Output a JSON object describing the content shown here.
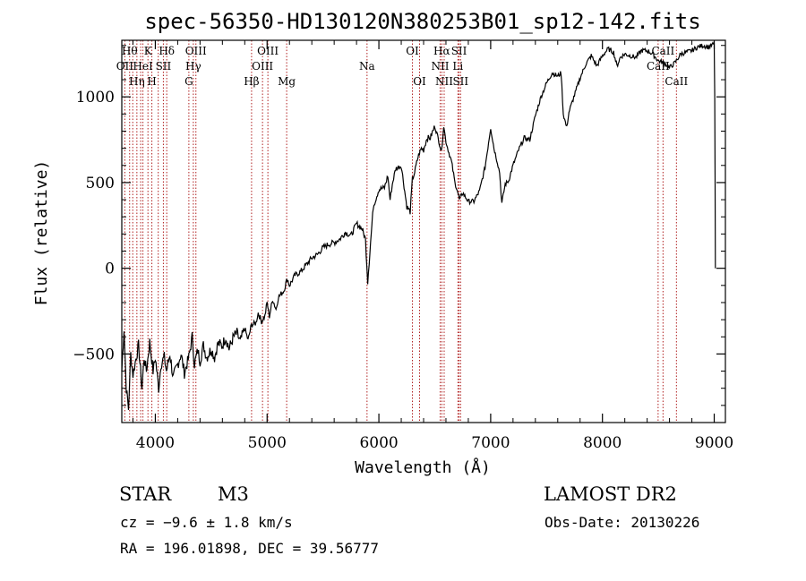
{
  "chart_data": {
    "type": "line",
    "title": "spec-56350-HD130120N380253B01_sp12-142.fits",
    "xlabel": "Wavelength (Å)",
    "ylabel": "Flux (relative)",
    "xlim": [
      3700,
      9100
    ],
    "ylim": [
      -900,
      1330
    ],
    "xticks": [
      4000,
      5000,
      6000,
      7000,
      8000,
      9000
    ],
    "yticks": [
      -500,
      0,
      500,
      1000
    ],
    "grid": false,
    "series": [
      {
        "name": "flux",
        "x": [
          3700,
          3720,
          3740,
          3760,
          3780,
          3800,
          3820,
          3850,
          3880,
          3900,
          3920,
          3950,
          3980,
          4000,
          4030,
          4050,
          4080,
          4100,
          4130,
          4160,
          4200,
          4230,
          4260,
          4300,
          4330,
          4350,
          4380,
          4400,
          4430,
          4460,
          4500,
          4530,
          4560,
          4600,
          4630,
          4660,
          4700,
          4730,
          4760,
          4800,
          4830,
          4860,
          4900,
          4920,
          4950,
          4980,
          5000,
          5020,
          5050,
          5080,
          5100,
          5150,
          5180,
          5200,
          5250,
          5300,
          5350,
          5400,
          5450,
          5500,
          5550,
          5600,
          5650,
          5700,
          5750,
          5800,
          5850,
          5880,
          5900,
          5920,
          5950,
          6000,
          6050,
          6080,
          6100,
          6120,
          6150,
          6200,
          6250,
          6280,
          6300,
          6320,
          6350,
          6380,
          6400,
          6430,
          6460,
          6500,
          6530,
          6560,
          6580,
          6600,
          6620,
          6650,
          6680,
          6700,
          6720,
          6750,
          6800,
          6850,
          6900,
          6950,
          7000,
          7030,
          7060,
          7080,
          7100,
          7130,
          7160,
          7200,
          7250,
          7300,
          7350,
          7400,
          7450,
          7500,
          7550,
          7600,
          7630,
          7650,
          7680,
          7700,
          7750,
          7800,
          7850,
          7900,
          7950,
          8000,
          8050,
          8100,
          8130,
          8160,
          8200,
          8250,
          8300,
          8350,
          8400,
          8450,
          8500,
          8550,
          8600,
          8650,
          8700,
          8750,
          8800,
          8850,
          8900,
          8950,
          9000,
          9005,
          9010
        ],
        "values": [
          -600,
          -350,
          -700,
          -820,
          -500,
          -620,
          -550,
          -450,
          -700,
          -520,
          -600,
          -430,
          -600,
          -520,
          -700,
          -560,
          -520,
          -600,
          -500,
          -640,
          -560,
          -500,
          -610,
          -520,
          -400,
          -560,
          -480,
          -540,
          -450,
          -520,
          -470,
          -520,
          -440,
          -450,
          -400,
          -470,
          -400,
          -380,
          -430,
          -350,
          -420,
          -330,
          -320,
          -260,
          -310,
          -280,
          -200,
          -280,
          -180,
          -240,
          -170,
          -130,
          -60,
          -100,
          -40,
          -20,
          20,
          60,
          80,
          120,
          140,
          150,
          170,
          210,
          190,
          260,
          230,
          170,
          -80,
          100,
          360,
          460,
          470,
          540,
          400,
          490,
          580,
          600,
          360,
          330,
          520,
          560,
          650,
          700,
          690,
          760,
          760,
          830,
          760,
          680,
          830,
          740,
          690,
          620,
          500,
          460,
          400,
          440,
          390,
          390,
          450,
          590,
          820,
          700,
          620,
          560,
          380,
          490,
          510,
          600,
          690,
          760,
          750,
          890,
          1000,
          1080,
          1140,
          1120,
          1140,
          900,
          820,
          910,
          1010,
          1110,
          1190,
          1240,
          1180,
          1240,
          1280,
          1260,
          1180,
          1230,
          1250,
          1240,
          1230,
          1270,
          1270,
          1250,
          1210,
          1200,
          1170,
          1200,
          1250,
          1260,
          1270,
          1290,
          1300,
          1290,
          1310,
          1000,
          0
        ]
      }
    ],
    "lines": [
      {
        "wl": 3727,
        "label": "OII",
        "row": 1
      },
      {
        "wl": 3770,
        "label": "Hθ",
        "row": 0
      },
      {
        "wl": 3798,
        "label": "",
        "row": 0
      },
      {
        "wl": 3835,
        "label": "Hη",
        "row": 2
      },
      {
        "wl": 3869,
        "label": "",
        "row": 0
      },
      {
        "wl": 3889,
        "label": "HeI",
        "row": 1
      },
      {
        "wl": 3934,
        "label": "K",
        "row": 0
      },
      {
        "wl": 3969,
        "label": "H",
        "row": 2
      },
      {
        "wl": 4026,
        "label": "",
        "row": 0
      },
      {
        "wl": 4072,
        "label": "SII",
        "row": 1
      },
      {
        "wl": 4102,
        "label": "Hδ",
        "row": 0
      },
      {
        "wl": 4300,
        "label": "G",
        "row": 2
      },
      {
        "wl": 4340,
        "label": "Hγ",
        "row": 1
      },
      {
        "wl": 4363,
        "label": "OIII",
        "row": 0
      },
      {
        "wl": 4861,
        "label": "Hβ",
        "row": 2
      },
      {
        "wl": 4959,
        "label": "OIII",
        "row": 1
      },
      {
        "wl": 5007,
        "label": "OIII",
        "row": 0
      },
      {
        "wl": 5175,
        "label": "Mg",
        "row": 2
      },
      {
        "wl": 5894,
        "label": "Na",
        "row": 1
      },
      {
        "wl": 6300,
        "label": "OI",
        "row": 0
      },
      {
        "wl": 6364,
        "label": "OI",
        "row": 2
      },
      {
        "wl": 6548,
        "label": "NII",
        "row": 1
      },
      {
        "wl": 6563,
        "label": "Hα",
        "row": 0
      },
      {
        "wl": 6584,
        "label": "NII",
        "row": 2
      },
      {
        "wl": 6707,
        "label": "Li",
        "row": 1
      },
      {
        "wl": 6717,
        "label": "SII",
        "row": 0
      },
      {
        "wl": 6731,
        "label": "SII",
        "row": 2
      },
      {
        "wl": 8498,
        "label": "CaII",
        "row": 1
      },
      {
        "wl": 8542,
        "label": "CaII",
        "row": 0
      },
      {
        "wl": 8662,
        "label": "CaII",
        "row": 2
      }
    ]
  },
  "info": {
    "object_class": "STAR",
    "subclass": "M3",
    "survey": "LAMOST DR2",
    "cz": "cz = −9.6 ± 1.8 km/s",
    "obs_date": "Obs-Date: 20130226",
    "coords": "RA = 196.01898, DEC =  39.56777"
  },
  "colors": {
    "line": "#000000",
    "marker": "#b02020",
    "axis": "#000000"
  }
}
